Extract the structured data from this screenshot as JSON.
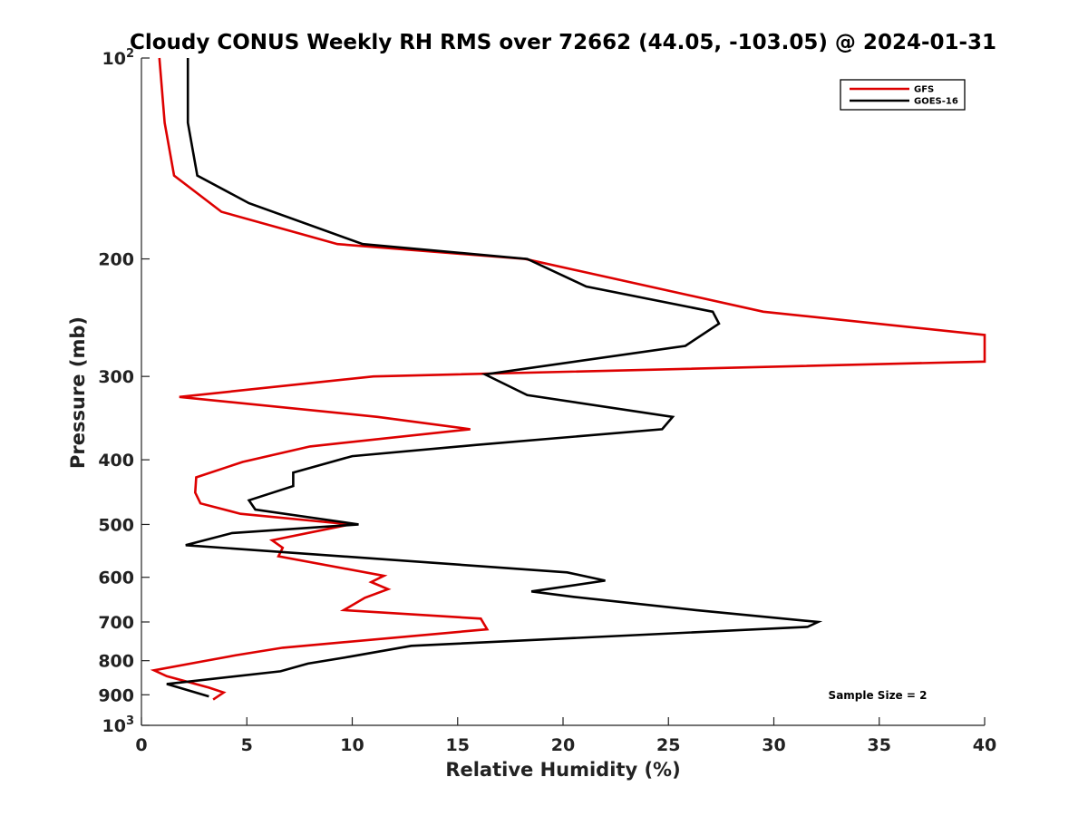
{
  "chart_data": {
    "type": "line",
    "title": "Cloudy CONUS Weekly RH RMS over 72662 (44.05, -103.05) @ 2024-01-31",
    "xlabel": "Relative Humidity (%)",
    "ylabel": "Pressure (mb)",
    "xlim": [
      0,
      40
    ],
    "ylim": [
      100,
      1000
    ],
    "y_scale": "log",
    "y_reversed": true,
    "x_ticks": [
      "0",
      "5",
      "10",
      "15",
      "20",
      "25",
      "30",
      "35",
      "40"
    ],
    "y_ticks": [
      {
        "value": 100,
        "base": "10",
        "exp": "2"
      },
      {
        "value": 200,
        "label": "200"
      },
      {
        "value": 300,
        "label": "300"
      },
      {
        "value": 400,
        "label": "400"
      },
      {
        "value": 500,
        "label": "500"
      },
      {
        "value": 600,
        "label": "600"
      },
      {
        "value": 700,
        "label": "700"
      },
      {
        "value": 800,
        "label": "800"
      },
      {
        "value": 900,
        "label": "900"
      },
      {
        "value": 1000,
        "base": "10",
        "exp": "3"
      }
    ],
    "legend_position": "top-right",
    "grid": false,
    "series": [
      {
        "name": "GFS",
        "color": "#dd0000",
        "points": [
          [
            0.85,
            100
          ],
          [
            1.1,
            125
          ],
          [
            1.55,
            150
          ],
          [
            3.8,
            170
          ],
          [
            9.3,
            190
          ],
          [
            18.2,
            200
          ],
          [
            29.5,
            240
          ],
          [
            40,
            260
          ],
          [
            40,
            285
          ],
          [
            11,
            300
          ],
          [
            1.8,
            322
          ],
          [
            11.2,
            345
          ],
          [
            15.6,
            360
          ],
          [
            8,
            382
          ],
          [
            4.8,
            403
          ],
          [
            2.6,
            425
          ],
          [
            2.55,
            448
          ],
          [
            2.8,
            465
          ],
          [
            4.7,
            482
          ],
          [
            9.9,
            500
          ],
          [
            6.2,
            528
          ],
          [
            6.7,
            542
          ],
          [
            6.5,
            558
          ],
          [
            11.5,
            597
          ],
          [
            10.9,
            610
          ],
          [
            11.7,
            625
          ],
          [
            10.6,
            644
          ],
          [
            9.6,
            672
          ],
          [
            16.1,
            692
          ],
          [
            16.4,
            718
          ],
          [
            6.7,
            765
          ],
          [
            4.5,
            785
          ],
          [
            2.8,
            803
          ],
          [
            0.6,
            827
          ],
          [
            1.2,
            844
          ],
          [
            3.2,
            878
          ],
          [
            3.9,
            893
          ],
          [
            3.4,
            915
          ]
        ]
      },
      {
        "name": "GOES-16",
        "color": "#000000",
        "points": [
          [
            2.2,
            100
          ],
          [
            2.2,
            125
          ],
          [
            2.65,
            150
          ],
          [
            5.1,
            165
          ],
          [
            10.5,
            190
          ],
          [
            18.3,
            200
          ],
          [
            21.1,
            220
          ],
          [
            27.1,
            240
          ],
          [
            27.4,
            250
          ],
          [
            25.8,
            270
          ],
          [
            16.3,
            298
          ],
          [
            18.3,
            320
          ],
          [
            25.2,
            345
          ],
          [
            24.7,
            360
          ],
          [
            15.9,
            380
          ],
          [
            10,
            395
          ],
          [
            7.2,
            418
          ],
          [
            7.2,
            438
          ],
          [
            5.1,
            460
          ],
          [
            5.4,
            475
          ],
          [
            10.3,
            500
          ],
          [
            4.3,
            515
          ],
          [
            2.1,
            537
          ],
          [
            20.2,
            590
          ],
          [
            22,
            607
          ],
          [
            18.5,
            630
          ],
          [
            20.5,
            642
          ],
          [
            26.3,
            672
          ],
          [
            32.1,
            700
          ],
          [
            31.6,
            712
          ],
          [
            12.8,
            760
          ],
          [
            9.9,
            789
          ],
          [
            7.9,
            808
          ],
          [
            6.6,
            830
          ],
          [
            1.2,
            867
          ],
          [
            3.2,
            905
          ]
        ]
      }
    ],
    "annotations": [
      "Sample Size = 2"
    ]
  }
}
